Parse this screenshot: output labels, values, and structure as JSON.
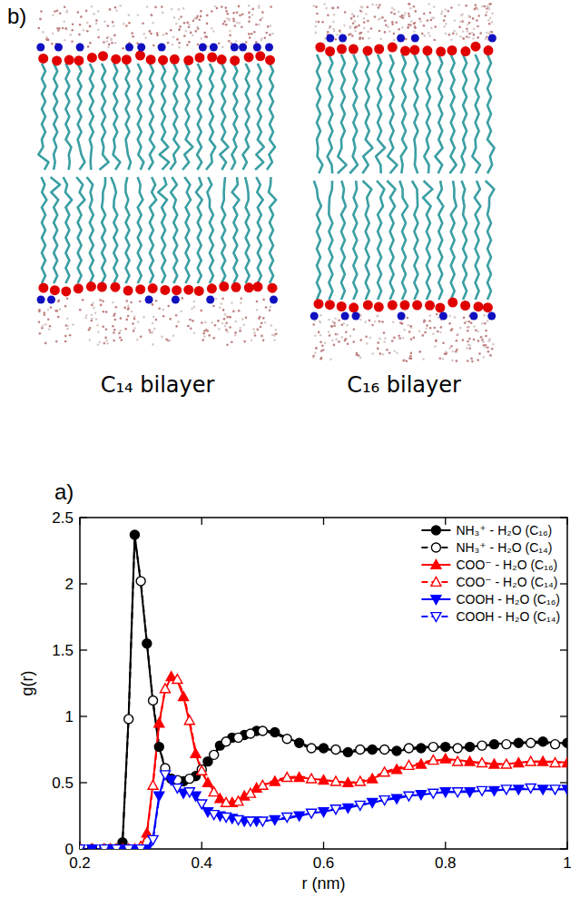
{
  "panel_b": {
    "label": "b)",
    "captions": [
      "C₁₄ bilayer",
      "C₁₆ bilayer"
    ]
  },
  "chart_data": {
    "type": "line",
    "panel_label": "a)",
    "x_label": "r (nm)",
    "y_label": "g(r)",
    "xlim": [
      0.2,
      1
    ],
    "ylim": [
      0,
      2.5
    ],
    "xticks": [
      0.2,
      0.4,
      0.6,
      0.8,
      1
    ],
    "yticks": [
      0,
      0.5,
      1,
      1.5,
      2,
      2.5
    ],
    "grid": false,
    "legend": "upper right",
    "x": [
      0.2,
      0.22,
      0.24,
      0.25,
      0.26,
      0.27,
      0.28,
      0.29,
      0.3,
      0.31,
      0.32,
      0.33,
      0.34,
      0.35,
      0.36,
      0.37,
      0.38,
      0.39,
      0.4,
      0.41,
      0.42,
      0.43,
      0.44,
      0.45,
      0.46,
      0.47,
      0.48,
      0.49,
      0.5,
      0.52,
      0.54,
      0.56,
      0.58,
      0.6,
      0.62,
      0.64,
      0.66,
      0.68,
      0.7,
      0.72,
      0.74,
      0.76,
      0.78,
      0.8,
      0.82,
      0.84,
      0.86,
      0.88,
      0.9,
      0.92,
      0.94,
      0.96,
      0.98,
      1.0
    ],
    "series": [
      {
        "name": "NH₃⁺ - H₂O (C₁₆)",
        "color": "#000000",
        "marker": "circle",
        "line_style": "solid",
        "values": [
          0,
          0,
          0,
          0,
          0,
          0.05,
          1.0,
          2.37,
          2.0,
          1.55,
          1.1,
          0.77,
          0.6,
          0.53,
          0.51,
          0.51,
          0.52,
          0.55,
          0.6,
          0.66,
          0.72,
          0.78,
          0.82,
          0.84,
          0.85,
          0.86,
          0.87,
          0.89,
          0.9,
          0.88,
          0.84,
          0.8,
          0.77,
          0.76,
          0.74,
          0.73,
          0.74,
          0.75,
          0.75,
          0.74,
          0.75,
          0.76,
          0.77,
          0.77,
          0.76,
          0.77,
          0.78,
          0.79,
          0.8,
          0.8,
          0.81,
          0.81,
          0.8,
          0.8
        ]
      },
      {
        "name": "NH₃⁺ - H₂O (C₁₄)",
        "color": "#000000",
        "marker": "circle-open",
        "line_style": "dashed",
        "values": [
          0,
          0,
          0,
          0,
          0,
          0.05,
          0.98,
          2.35,
          2.02,
          1.56,
          1.12,
          0.78,
          0.61,
          0.54,
          0.52,
          0.51,
          0.53,
          0.56,
          0.6,
          0.65,
          0.71,
          0.77,
          0.81,
          0.83,
          0.84,
          0.86,
          0.87,
          0.88,
          0.89,
          0.87,
          0.83,
          0.79,
          0.76,
          0.75,
          0.75,
          0.74,
          0.75,
          0.76,
          0.75,
          0.75,
          0.76,
          0.77,
          0.77,
          0.76,
          0.76,
          0.77,
          0.78,
          0.78,
          0.79,
          0.8,
          0.8,
          0.8,
          0.79,
          0.79
        ]
      },
      {
        "name": "COO⁻ - H₂O (C₁₆)",
        "color": "#ff0000",
        "marker": "triangle",
        "line_style": "solid",
        "values": [
          0,
          0,
          0,
          0,
          0,
          0,
          0,
          0,
          0.02,
          0.12,
          0.5,
          0.95,
          1.2,
          1.3,
          1.27,
          1.15,
          0.95,
          0.72,
          0.58,
          0.5,
          0.44,
          0.38,
          0.35,
          0.35,
          0.37,
          0.4,
          0.43,
          0.46,
          0.48,
          0.51,
          0.53,
          0.54,
          0.53,
          0.52,
          0.51,
          0.5,
          0.5,
          0.53,
          0.57,
          0.6,
          0.62,
          0.64,
          0.66,
          0.68,
          0.67,
          0.66,
          0.65,
          0.64,
          0.64,
          0.65,
          0.66,
          0.66,
          0.66,
          0.65
        ]
      },
      {
        "name": "COO⁻ - H₂O (C₁₄)",
        "color": "#ff0000",
        "marker": "triangle-open",
        "line_style": "dashed",
        "values": [
          0,
          0,
          0,
          0,
          0,
          0,
          0,
          0,
          0.02,
          0.11,
          0.48,
          0.93,
          1.21,
          1.31,
          1.28,
          1.17,
          0.97,
          0.74,
          0.59,
          0.5,
          0.43,
          0.38,
          0.35,
          0.34,
          0.36,
          0.39,
          0.42,
          0.45,
          0.48,
          0.52,
          0.54,
          0.55,
          0.53,
          0.52,
          0.51,
          0.5,
          0.51,
          0.54,
          0.58,
          0.61,
          0.63,
          0.65,
          0.67,
          0.67,
          0.66,
          0.65,
          0.65,
          0.64,
          0.64,
          0.65,
          0.66,
          0.66,
          0.65,
          0.65
        ]
      },
      {
        "name": "COOH - H₂O (C₁₆)",
        "color": "#0000ff",
        "marker": "triangle-down",
        "line_style": "solid",
        "values": [
          0,
          0,
          0,
          0,
          0,
          0,
          0,
          0,
          0,
          0,
          0.08,
          0.4,
          0.57,
          0.52,
          0.45,
          0.42,
          0.43,
          0.4,
          0.33,
          0.28,
          0.26,
          0.25,
          0.24,
          0.23,
          0.22,
          0.21,
          0.21,
          0.21,
          0.21,
          0.22,
          0.23,
          0.25,
          0.27,
          0.28,
          0.3,
          0.31,
          0.33,
          0.35,
          0.37,
          0.38,
          0.4,
          0.41,
          0.42,
          0.43,
          0.43,
          0.43,
          0.44,
          0.44,
          0.45,
          0.45,
          0.45,
          0.45,
          0.45,
          0.45
        ]
      },
      {
        "name": "COOH - H₂O (C₁₄)",
        "color": "#0000ff",
        "marker": "triangle-down-open",
        "line_style": "dashed",
        "values": [
          0,
          0,
          0,
          0,
          0,
          0,
          0,
          0,
          0,
          0,
          0.07,
          0.38,
          0.56,
          0.53,
          0.46,
          0.42,
          0.43,
          0.41,
          0.34,
          0.29,
          0.26,
          0.25,
          0.24,
          0.23,
          0.22,
          0.22,
          0.21,
          0.21,
          0.21,
          0.22,
          0.24,
          0.25,
          0.27,
          0.29,
          0.3,
          0.32,
          0.33,
          0.35,
          0.37,
          0.39,
          0.4,
          0.41,
          0.42,
          0.43,
          0.43,
          0.44,
          0.44,
          0.44,
          0.45,
          0.45,
          0.46,
          0.45,
          0.45,
          0.45
        ]
      }
    ]
  }
}
